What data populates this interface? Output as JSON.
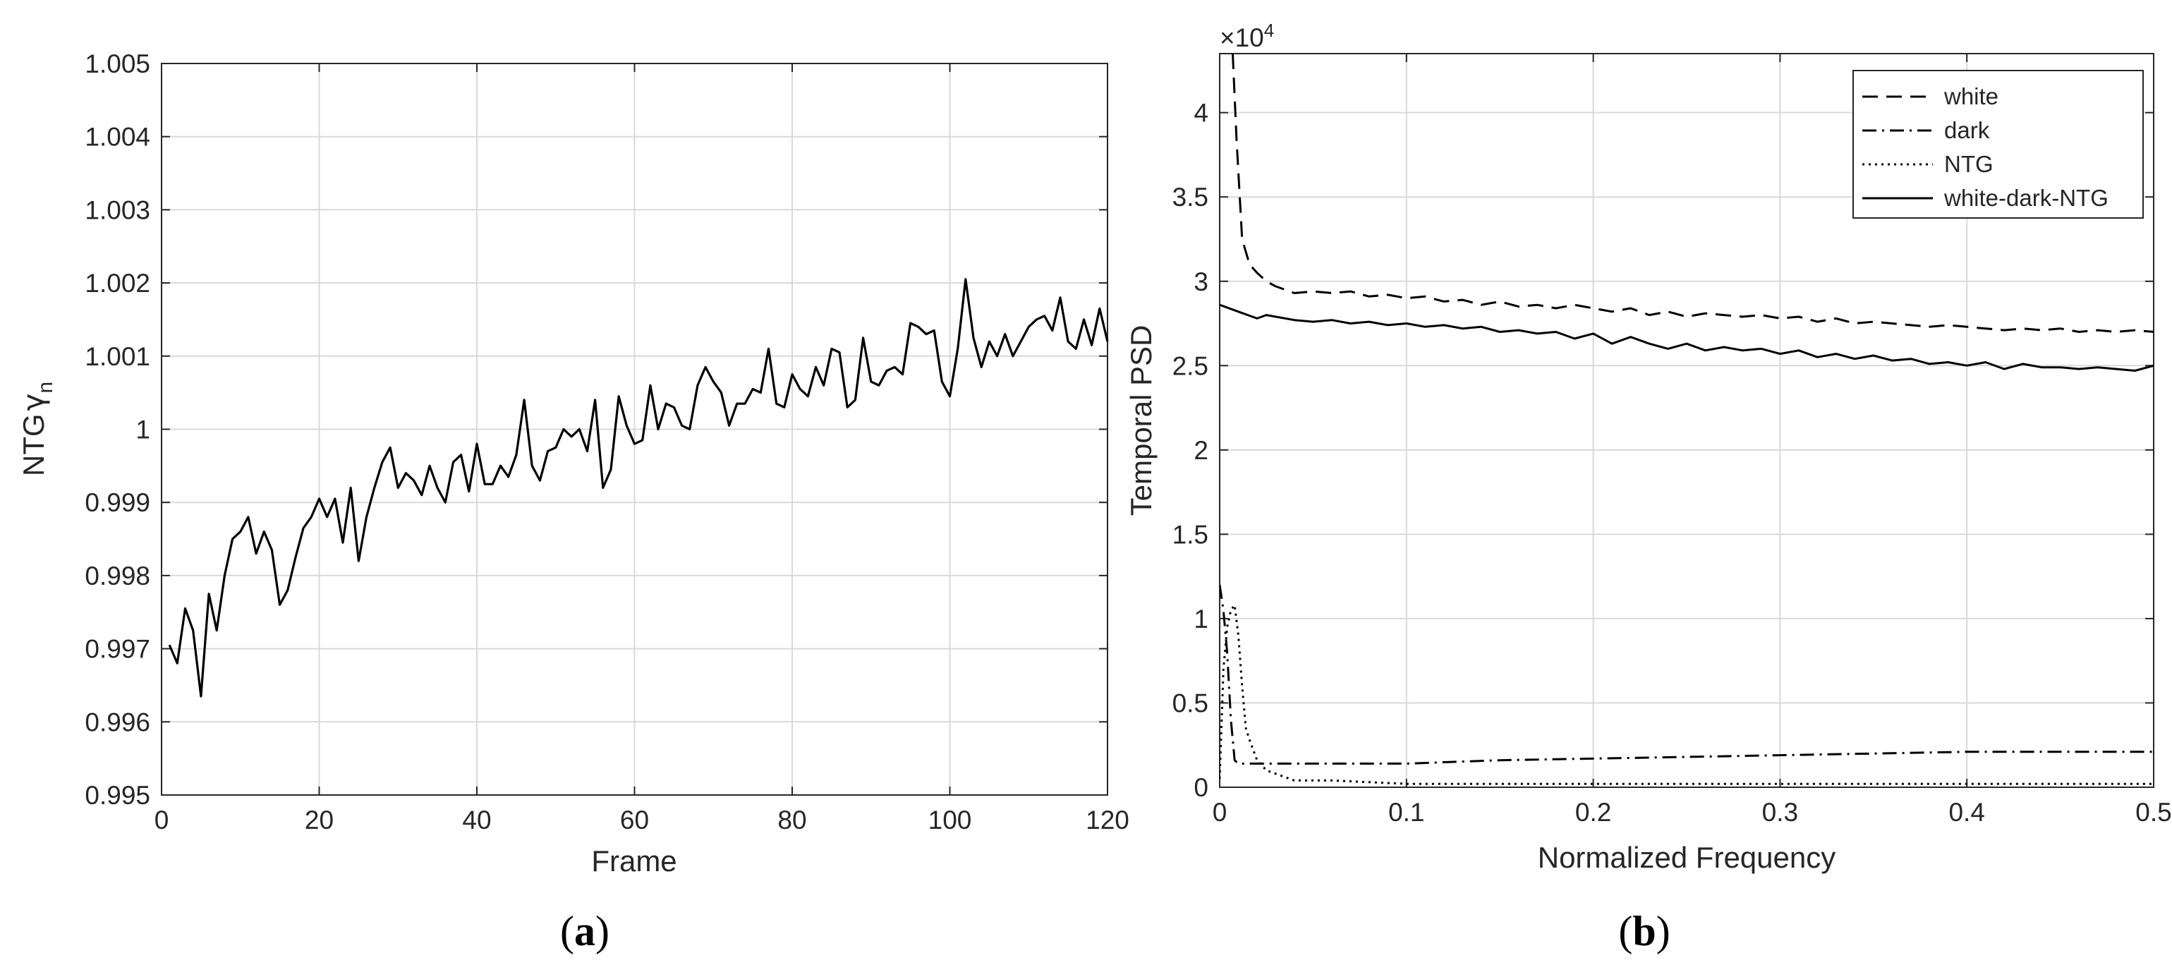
{
  "chart_data": [
    {
      "type": "line",
      "panel_label_open": "(",
      "panel_label": "a",
      "panel_label_close": ")",
      "xlabel": "Frame",
      "ylabel_main": "NTG",
      "ylabel_symbol": "γ",
      "ylabel_sub": "n",
      "xlim": [
        0,
        120
      ],
      "ylim": [
        0.995,
        1.005
      ],
      "xticks": [
        "0",
        "20",
        "40",
        "60",
        "80",
        "100",
        "120"
      ],
      "yticks": [
        "0.995",
        "0.996",
        "0.997",
        "0.998",
        "0.999",
        "1",
        "1.001",
        "1.002",
        "1.003",
        "1.004",
        "1.005"
      ],
      "grid": true,
      "series": [
        {
          "color": "#000000",
          "style": "solid",
          "x": [
            1,
            2,
            3,
            4,
            5,
            6,
            7,
            8,
            9,
            10,
            11,
            12,
            13,
            14,
            15,
            16,
            17,
            18,
            19,
            20,
            21,
            22,
            23,
            24,
            25,
            26,
            27,
            28,
            29,
            30,
            31,
            32,
            33,
            34,
            35,
            36,
            37,
            38,
            39,
            40,
            41,
            42,
            43,
            44,
            45,
            46,
            47,
            48,
            49,
            50,
            51,
            52,
            53,
            54,
            55,
            56,
            57,
            58,
            59,
            60,
            61,
            62,
            63,
            64,
            65,
            66,
            67,
            68,
            69,
            70,
            71,
            72,
            73,
            74,
            75,
            76,
            77,
            78,
            79,
            80,
            81,
            82,
            83,
            84,
            85,
            86,
            87,
            88,
            89,
            90,
            91,
            92,
            93,
            94,
            95,
            96,
            97,
            98,
            99,
            100,
            101,
            102,
            103,
            104,
            105,
            106,
            107,
            108,
            109,
            110,
            111,
            112,
            113,
            114,
            115,
            116,
            117,
            118,
            119,
            120
          ],
          "y": [
            0.99705,
            0.9968,
            0.99755,
            0.99725,
            0.99635,
            0.99775,
            0.99725,
            0.998,
            0.9985,
            0.9986,
            0.9988,
            0.9983,
            0.9986,
            0.99835,
            0.9976,
            0.9978,
            0.99825,
            0.99865,
            0.9988,
            0.99905,
            0.9988,
            0.99905,
            0.99845,
            0.9992,
            0.9982,
            0.9988,
            0.9992,
            0.99955,
            0.99975,
            0.9992,
            0.9994,
            0.9993,
            0.9991,
            0.9995,
            0.9992,
            0.999,
            0.99955,
            0.99965,
            0.99915,
            0.9998,
            0.99925,
            0.99925,
            0.9995,
            0.99935,
            0.99965,
            1.0004,
            0.9995,
            0.9993,
            0.9997,
            0.99975,
            1.0,
            0.9999,
            1.0,
            0.9997,
            1.0004,
            0.9992,
            0.99945,
            1.00045,
            1.00005,
            0.9998,
            0.99985,
            1.0006,
            1.0,
            1.00035,
            1.0003,
            1.00005,
            1.0,
            1.0006,
            1.00085,
            1.00065,
            1.0005,
            1.00005,
            1.00035,
            1.00035,
            1.00055,
            1.0005,
            1.0011,
            1.00035,
            1.0003,
            1.00075,
            1.00055,
            1.00045,
            1.00085,
            1.0006,
            1.0011,
            1.00105,
            1.0003,
            1.0004,
            1.00125,
            1.00065,
            1.0006,
            1.0008,
            1.00085,
            1.00075,
            1.00145,
            1.0014,
            1.0013,
            1.00135,
            1.00065,
            1.00045,
            1.0011,
            1.00205,
            1.00125,
            1.00085,
            1.0012,
            1.001,
            1.0013,
            1.001,
            1.0012,
            1.0014,
            1.0015,
            1.00155,
            1.00135,
            1.0018,
            1.0012,
            1.0011,
            1.0015,
            1.00115,
            1.00165,
            1.0012
          ]
        }
      ]
    },
    {
      "type": "line",
      "panel_label_open": "(",
      "panel_label": "b",
      "panel_label_close": ")",
      "xlabel": "Normalized Frequency",
      "ylabel": "Temporal PSD",
      "multiplier_prefix": "×10",
      "multiplier_exp": "4",
      "xlim": [
        0,
        0.5
      ],
      "ylim": [
        0,
        4.35
      ],
      "xticks": [
        "0",
        "0.1",
        "0.2",
        "0.3",
        "0.4",
        "0.5"
      ],
      "yticks": [
        "0",
        "0.5",
        "1",
        "1.5",
        "2",
        "2.5",
        "3",
        "3.5",
        "4"
      ],
      "grid": true,
      "legend_position": "top-right",
      "series": [
        {
          "name": "white",
          "style": "dashed",
          "color": "#000000",
          "x": [
            0.007,
            0.009,
            0.012,
            0.016,
            0.02,
            0.025,
            0.03,
            0.035,
            0.04,
            0.05,
            0.06,
            0.07,
            0.08,
            0.09,
            0.1,
            0.11,
            0.12,
            0.13,
            0.14,
            0.15,
            0.16,
            0.17,
            0.18,
            0.19,
            0.2,
            0.21,
            0.22,
            0.23,
            0.24,
            0.25,
            0.26,
            0.27,
            0.28,
            0.29,
            0.3,
            0.31,
            0.32,
            0.33,
            0.34,
            0.35,
            0.36,
            0.37,
            0.38,
            0.39,
            0.4,
            0.41,
            0.42,
            0.43,
            0.44,
            0.45,
            0.46,
            0.47,
            0.48,
            0.49,
            0.5
          ],
          "y": [
            4.35,
            3.85,
            3.25,
            3.1,
            3.05,
            3.0,
            2.97,
            2.95,
            2.93,
            2.94,
            2.93,
            2.94,
            2.91,
            2.92,
            2.9,
            2.91,
            2.88,
            2.89,
            2.86,
            2.88,
            2.85,
            2.86,
            2.84,
            2.86,
            2.84,
            2.82,
            2.84,
            2.8,
            2.82,
            2.79,
            2.81,
            2.8,
            2.79,
            2.8,
            2.78,
            2.79,
            2.76,
            2.78,
            2.75,
            2.76,
            2.75,
            2.74,
            2.73,
            2.74,
            2.73,
            2.72,
            2.71,
            2.72,
            2.71,
            2.72,
            2.7,
            2.71,
            2.7,
            2.71,
            2.7
          ]
        },
        {
          "name": "dark",
          "style": "dashdot",
          "color": "#000000",
          "x": [
            0.0,
            0.002,
            0.004,
            0.006,
            0.008,
            0.01,
            0.05,
            0.1,
            0.15,
            0.2,
            0.25,
            0.3,
            0.35,
            0.4,
            0.45,
            0.5
          ],
          "y": [
            1.2,
            1.05,
            0.8,
            0.4,
            0.16,
            0.14,
            0.14,
            0.14,
            0.16,
            0.17,
            0.18,
            0.19,
            0.2,
            0.21,
            0.21,
            0.21
          ]
        },
        {
          "name": "NTG",
          "style": "dotted",
          "color": "#000000",
          "x": [
            0.0,
            0.002,
            0.004,
            0.006,
            0.008,
            0.01,
            0.012,
            0.014,
            0.016,
            0.018,
            0.02,
            0.025,
            0.03,
            0.035,
            0.04,
            0.05,
            0.06,
            0.08,
            0.1,
            0.2,
            0.3,
            0.4,
            0.5
          ],
          "y": [
            0.05,
            0.7,
            0.95,
            1.05,
            1.08,
            0.9,
            0.6,
            0.35,
            0.28,
            0.22,
            0.16,
            0.1,
            0.08,
            0.06,
            0.04,
            0.04,
            0.04,
            0.03,
            0.02,
            0.02,
            0.02,
            0.02,
            0.02
          ]
        },
        {
          "name": "white-dark-NTG",
          "style": "solid",
          "color": "#000000",
          "x": [
            0.0,
            0.01,
            0.02,
            0.025,
            0.03,
            0.04,
            0.05,
            0.06,
            0.07,
            0.08,
            0.09,
            0.1,
            0.11,
            0.12,
            0.13,
            0.14,
            0.15,
            0.16,
            0.17,
            0.18,
            0.19,
            0.2,
            0.21,
            0.22,
            0.23,
            0.24,
            0.25,
            0.26,
            0.27,
            0.28,
            0.29,
            0.3,
            0.31,
            0.32,
            0.33,
            0.34,
            0.35,
            0.36,
            0.37,
            0.38,
            0.39,
            0.4,
            0.41,
            0.42,
            0.43,
            0.44,
            0.45,
            0.46,
            0.47,
            0.48,
            0.49,
            0.5
          ],
          "y": [
            2.86,
            2.82,
            2.78,
            2.8,
            2.79,
            2.77,
            2.76,
            2.77,
            2.75,
            2.76,
            2.74,
            2.75,
            2.73,
            2.74,
            2.72,
            2.73,
            2.7,
            2.71,
            2.69,
            2.7,
            2.66,
            2.69,
            2.63,
            2.67,
            2.63,
            2.6,
            2.63,
            2.59,
            2.61,
            2.59,
            2.6,
            2.57,
            2.59,
            2.55,
            2.57,
            2.54,
            2.56,
            2.53,
            2.54,
            2.51,
            2.52,
            2.5,
            2.52,
            2.48,
            2.51,
            2.49,
            2.49,
            2.48,
            2.49,
            2.48,
            2.47,
            2.5
          ]
        }
      ]
    }
  ]
}
